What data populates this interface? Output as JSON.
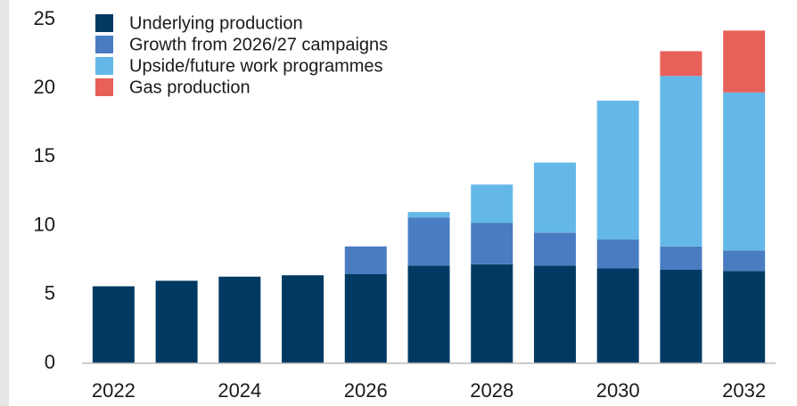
{
  "chart_data": {
    "type": "stacked_bar",
    "categories": [
      "2022",
      null,
      "2024",
      null,
      "2026",
      null,
      "2028",
      null,
      "2030",
      null,
      "2032"
    ],
    "series": [
      {
        "name": "Underlying production",
        "color": "#003a63",
        "values": [
          5.6,
          6.0,
          6.3,
          6.4,
          6.5,
          7.1,
          7.2,
          7.1,
          6.9,
          6.8,
          6.7
        ]
      },
      {
        "name": "Growth from 2026/27 campaigns",
        "color": "#4a7cc2",
        "values": [
          0,
          0,
          0,
          0,
          2.0,
          3.5,
          3.0,
          2.4,
          2.1,
          1.7,
          1.5
        ]
      },
      {
        "name": "Upside/future work programmes",
        "color": "#63b8e8",
        "values": [
          0,
          0,
          0,
          0,
          0,
          0.4,
          2.8,
          5.1,
          10.1,
          12.4,
          11.5
        ]
      },
      {
        "name": "Gas production",
        "color": "#e8605a",
        "values": [
          0,
          0,
          0,
          0,
          0,
          0,
          0,
          0,
          0,
          1.8,
          4.5
        ]
      }
    ],
    "ylim": [
      0,
      25
    ],
    "yticks": [
      0,
      5,
      10,
      15,
      20,
      25
    ],
    "legend": "upper left"
  }
}
